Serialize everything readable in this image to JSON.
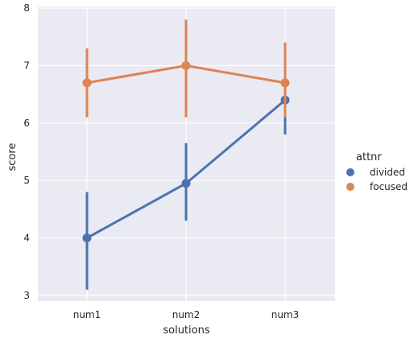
{
  "chart_data": {
    "type": "line",
    "title": "",
    "xlabel": "solutions",
    "ylabel": "score",
    "categories": [
      "num1",
      "num2",
      "num3"
    ],
    "ylim": [
      2.9,
      8.03
    ],
    "yticks": [
      "3",
      "4",
      "5",
      "6",
      "7",
      "8"
    ],
    "grid": true,
    "legend": {
      "title": "attnr",
      "position": "right"
    },
    "series": [
      {
        "name": "divided",
        "color": "#4c72b0",
        "values": [
          4.0,
          4.95,
          6.4
        ],
        "ci_low": [
          3.1,
          4.3,
          5.8
        ],
        "ci_high": [
          4.8,
          5.65,
          7.0
        ]
      },
      {
        "name": "focused",
        "color": "#dd8452",
        "values": [
          6.7,
          7.0,
          6.7
        ],
        "ci_low": [
          6.1,
          6.1,
          6.1
        ],
        "ci_high": [
          7.3,
          7.8,
          7.4
        ]
      }
    ]
  }
}
